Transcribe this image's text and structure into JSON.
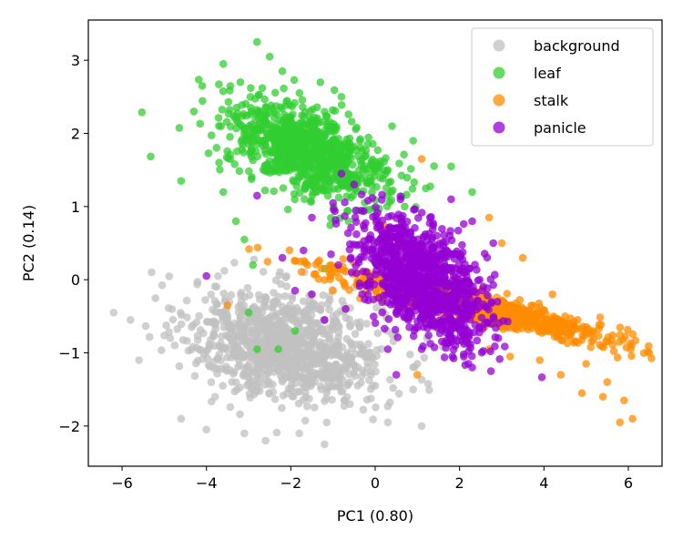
{
  "chart_data": {
    "type": "scatter",
    "xlabel": "PC1 (0.80)",
    "ylabel": "PC2 (0.14)",
    "xlim": [
      -6.8,
      6.8
    ],
    "ylim": [
      -2.55,
      3.55
    ],
    "xticks": [
      -6,
      -4,
      -2,
      0,
      2,
      4,
      6
    ],
    "yticks": [
      -2,
      -1,
      0,
      1,
      2,
      3
    ],
    "xtick_labels": [
      "−6",
      "−4",
      "−2",
      "0",
      "2",
      "4",
      "6"
    ],
    "ytick_labels": [
      "−2",
      "−1",
      "0",
      "1",
      "2",
      "3"
    ],
    "grid": false,
    "legend_position": "top-right",
    "series": [
      {
        "name": "background",
        "color": "#c0c0c0",
        "cluster": {
          "center": [
            -2.1,
            -0.9
          ],
          "spread": [
            1.15,
            0.38
          ],
          "correlation": -0.25,
          "count": 1000
        },
        "points": [
          [
            -6.2,
            -0.45
          ],
          [
            -5.8,
            -0.55
          ],
          [
            -5.6,
            -1.1
          ],
          [
            -5.3,
            0.1
          ],
          [
            -4.6,
            -1.9
          ],
          [
            -4.0,
            -2.05
          ],
          [
            -3.1,
            -2.1
          ],
          [
            -2.6,
            -2.2
          ],
          [
            -1.8,
            -2.1
          ],
          [
            -1.2,
            -2.25
          ],
          [
            -0.6,
            -1.7
          ],
          [
            0.3,
            -1.95
          ],
          [
            1.1,
            -2.0
          ],
          [
            0.9,
            -1.5
          ],
          [
            1.0,
            -1.15
          ],
          [
            0.4,
            -0.75
          ],
          [
            -0.2,
            -0.6
          ],
          [
            -1.0,
            -0.5
          ],
          [
            -2.0,
            -0.45
          ],
          [
            -3.2,
            -0.35
          ]
        ]
      },
      {
        "name": "leaf",
        "color": "#32cd32",
        "cluster": {
          "center": [
            -1.6,
            1.75
          ],
          "spread": [
            0.95,
            0.35
          ],
          "correlation": -0.55,
          "count": 900
        },
        "points": [
          [
            -2.8,
            3.25
          ],
          [
            -2.5,
            3.05
          ],
          [
            -3.6,
            2.95
          ],
          [
            -2.2,
            2.85
          ],
          [
            -4.1,
            2.65
          ],
          [
            -4.3,
            2.3
          ],
          [
            -4.6,
            1.35
          ],
          [
            -3.7,
            1.6
          ],
          [
            -3.6,
            1.2
          ],
          [
            -3.3,
            0.8
          ],
          [
            -3.1,
            0.55
          ],
          [
            -2.9,
            0.2
          ],
          [
            -2.8,
            -0.95
          ],
          [
            -3.0,
            -0.45
          ],
          [
            -1.9,
            -0.7
          ],
          [
            -2.3,
            -0.95
          ],
          [
            -1.2,
            0.15
          ],
          [
            0.3,
            1.5
          ],
          [
            0.7,
            1.0
          ],
          [
            1.2,
            1.25
          ],
          [
            1.8,
            1.55
          ],
          [
            2.3,
            1.2
          ],
          [
            -0.8,
            2.5
          ],
          [
            -1.3,
            2.7
          ],
          [
            0.4,
            2.1
          ],
          [
            0.9,
            1.9
          ]
        ]
      },
      {
        "name": "stalk",
        "color": "#ff8c00",
        "cluster": {
          "center": [
            2.3,
            -0.35
          ],
          "spread": [
            1.6,
            0.25
          ],
          "correlation": -0.92,
          "count": 900
        },
        "points": [
          [
            -3.5,
            -0.35
          ],
          [
            -1.0,
            -0.15
          ],
          [
            1.1,
            1.65
          ],
          [
            2.7,
            0.85
          ],
          [
            3.0,
            0.5
          ],
          [
            3.5,
            0.3
          ],
          [
            4.2,
            -0.2
          ],
          [
            4.5,
            -0.5
          ],
          [
            4.8,
            -0.55
          ],
          [
            5.0,
            -1.15
          ],
          [
            5.5,
            -1.4
          ],
          [
            5.9,
            -1.65
          ],
          [
            6.1,
            -1.9
          ],
          [
            5.8,
            -1.95
          ],
          [
            5.4,
            -1.6
          ],
          [
            4.9,
            -1.55
          ],
          [
            4.4,
            -1.3
          ],
          [
            3.9,
            -1.1
          ],
          [
            3.2,
            -1.05
          ],
          [
            2.7,
            -0.95
          ],
          [
            1.8,
            -0.8
          ],
          [
            1.0,
            -1.3
          ],
          [
            0.8,
            -0.5
          ],
          [
            0.6,
            0.45
          ],
          [
            0.2,
            0.75
          ]
        ]
      },
      {
        "name": "panicle",
        "color": "#9400d3",
        "cluster": {
          "center": [
            1.15,
            0.0
          ],
          "spread": [
            0.75,
            0.42
          ],
          "correlation": -0.55,
          "count": 1100
        },
        "points": [
          [
            -0.8,
            1.45
          ],
          [
            -0.5,
            1.3
          ],
          [
            -1.0,
            1.05
          ],
          [
            -2.8,
            1.15
          ],
          [
            -1.5,
            0.85
          ],
          [
            -1.7,
            0.4
          ],
          [
            -2.2,
            0.3
          ],
          [
            -1.9,
            -0.15
          ],
          [
            -1.5,
            -0.2
          ],
          [
            -1.2,
            -0.55
          ],
          [
            -0.7,
            -0.4
          ],
          [
            -4.0,
            0.05
          ],
          [
            0.3,
            -0.95
          ],
          [
            0.5,
            -1.3
          ],
          [
            1.1,
            -0.95
          ],
          [
            1.9,
            -0.9
          ],
          [
            2.3,
            -1.2
          ],
          [
            2.6,
            -0.6
          ],
          [
            2.9,
            -0.3
          ],
          [
            2.8,
            0.5
          ],
          [
            2.3,
            0.8
          ],
          [
            1.8,
            1.1
          ],
          [
            1.3,
            0.85
          ],
          [
            0.6,
            1.1
          ],
          [
            0.9,
            0.55
          ]
        ]
      }
    ]
  }
}
